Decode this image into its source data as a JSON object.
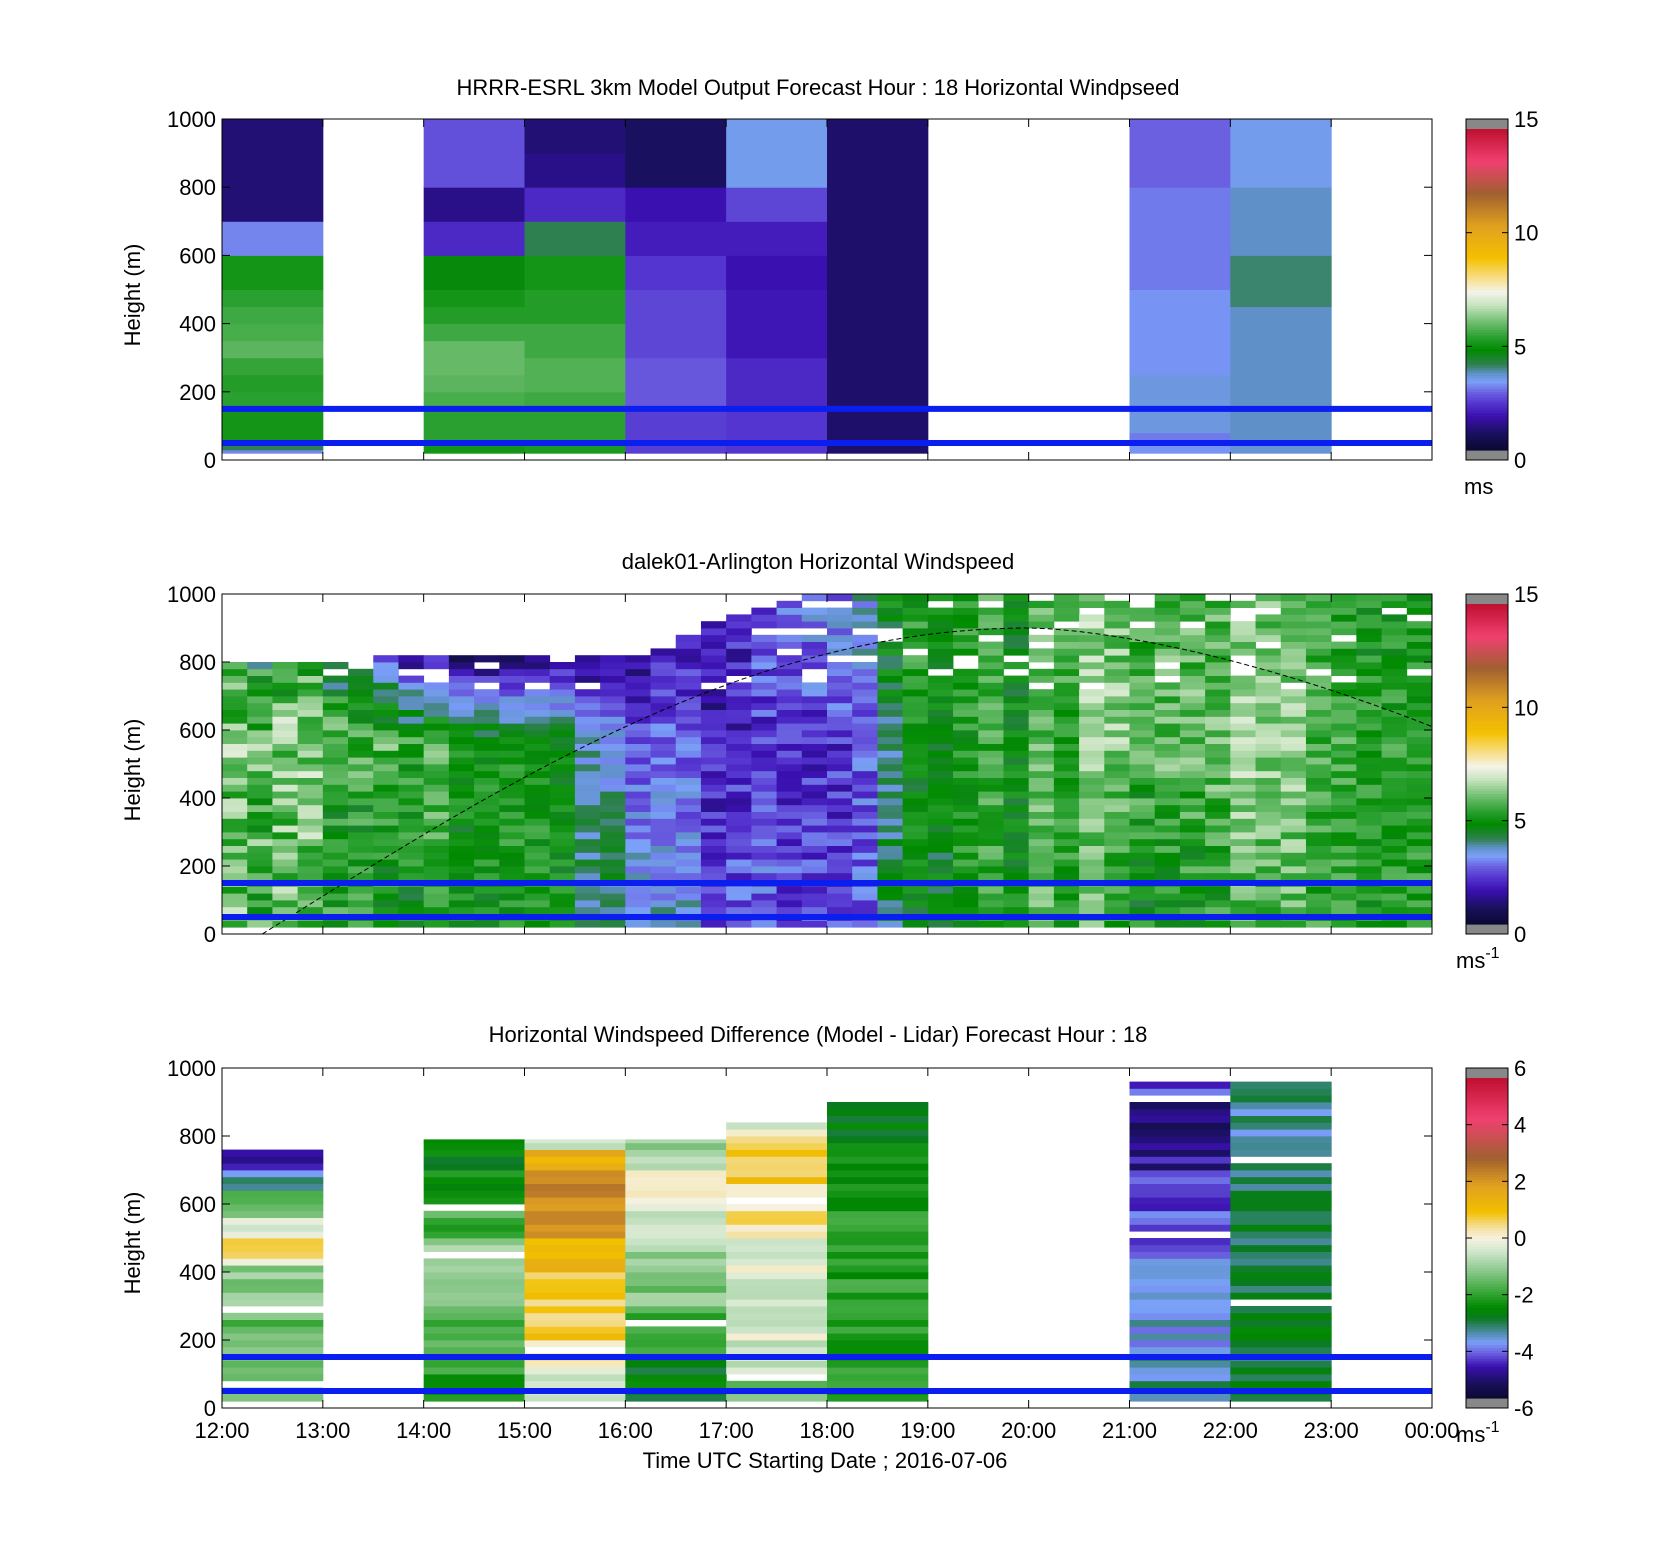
{
  "figure": {
    "xlabel": "Time UTC  Starting Date ; 2016-07-06",
    "x_tick_labels": [
      "12:00",
      "13:00",
      "14:00",
      "15:00",
      "16:00",
      "17:00",
      "18:00",
      "19:00",
      "20:00",
      "21:00",
      "22:00",
      "23:00",
      "00:00"
    ]
  },
  "chart_data": [
    {
      "type": "heatmap",
      "title": "HRRR-ESRL 3km Model Output   Forecast Hour : 18 Horizontal Windpseed",
      "xlabel": "",
      "ylabel": "Height (m)",
      "x_range_hours": [
        12,
        24
      ],
      "ylim": [
        0,
        1000
      ],
      "y_ticks": [
        0,
        200,
        400,
        600,
        800,
        1000
      ],
      "colorbar": {
        "min": 0,
        "max": 15,
        "ticks": [
          0,
          5,
          10,
          15
        ],
        "unit": "ms",
        "unit_sup": ""
      },
      "reference_lines_m": [
        50,
        150
      ],
      "columns": [
        {
          "hour": 12,
          "cells": [
            [
              20,
              30,
              3.0
            ],
            [
              30,
              50,
              4.0
            ],
            [
              50,
              150,
              5.0
            ],
            [
              150,
              200,
              5.3
            ],
            [
              200,
              250,
              5.2
            ],
            [
              250,
              300,
              5.4
            ],
            [
              300,
              350,
              5.8
            ],
            [
              350,
              400,
              5.6
            ],
            [
              400,
              450,
              5.5
            ],
            [
              450,
              500,
              5.3
            ],
            [
              500,
              600,
              5.0
            ],
            [
              600,
              700,
              3.0
            ],
            [
              700,
              1000,
              1.0
            ]
          ]
        },
        {
          "hour": 14,
          "cells": [
            [
              20,
              50,
              5.0
            ],
            [
              50,
              150,
              5.3
            ],
            [
              150,
              200,
              5.6
            ],
            [
              200,
              250,
              5.8
            ],
            [
              250,
              350,
              5.9
            ],
            [
              350,
              400,
              5.5
            ],
            [
              400,
              450,
              5.2
            ],
            [
              450,
              500,
              5.0
            ],
            [
              500,
              600,
              4.6
            ],
            [
              600,
              700,
              2.0
            ],
            [
              700,
              800,
              1.2
            ],
            [
              800,
              1000,
              2.5
            ]
          ]
        },
        {
          "hour": 15,
          "cells": [
            [
              20,
              50,
              5.1
            ],
            [
              50,
              150,
              5.3
            ],
            [
              150,
              200,
              5.5
            ],
            [
              200,
              300,
              5.7
            ],
            [
              300,
              400,
              5.5
            ],
            [
              400,
              500,
              5.2
            ],
            [
              500,
              600,
              5.0
            ],
            [
              600,
              700,
              4.0
            ],
            [
              700,
              800,
              2.0
            ],
            [
              800,
              900,
              1.2
            ],
            [
              900,
              1000,
              1.0
            ]
          ]
        },
        {
          "hour": 16,
          "cells": [
            [
              20,
              150,
              2.3
            ],
            [
              150,
              300,
              2.6
            ],
            [
              300,
              500,
              2.4
            ],
            [
              500,
              600,
              2.2
            ],
            [
              600,
              700,
              1.8
            ],
            [
              700,
              800,
              1.6
            ],
            [
              800,
              1000,
              0.8
            ]
          ]
        },
        {
          "hour": 17,
          "cells": [
            [
              20,
              150,
              2.2
            ],
            [
              150,
              300,
              2.0
            ],
            [
              300,
              500,
              1.7
            ],
            [
              500,
              600,
              1.6
            ],
            [
              600,
              700,
              1.8
            ],
            [
              700,
              800,
              2.4
            ],
            [
              800,
              1000,
              3.3
            ]
          ]
        },
        {
          "hour": 18,
          "cells": [
            [
              20,
              1000,
              0.9
            ]
          ]
        },
        {
          "hour": 21,
          "cells": [
            [
              20,
              50,
              3.1
            ],
            [
              50,
              80,
              2.9
            ],
            [
              80,
              250,
              3.4
            ],
            [
              250,
              500,
              3.1
            ],
            [
              500,
              800,
              2.9
            ],
            [
              800,
              1000,
              2.7
            ]
          ]
        },
        {
          "hour": 22,
          "cells": [
            [
              20,
              50,
              3.5
            ],
            [
              50,
              450,
              3.6
            ],
            [
              450,
              600,
              3.9
            ],
            [
              600,
              800,
              3.6
            ],
            [
              800,
              1000,
              3.3
            ]
          ]
        }
      ]
    },
    {
      "type": "heatmap",
      "title": "dalek01-Arlington  Horizontal Windspeed",
      "xlabel": "",
      "ylabel": "Height (m)",
      "x_range_hours": [
        12,
        24
      ],
      "ylim": [
        0,
        1000
      ],
      "y_ticks": [
        0,
        200,
        400,
        600,
        800,
        1000
      ],
      "colorbar": {
        "min": 0,
        "max": 15,
        "ticks": [
          0,
          5,
          10,
          15
        ],
        "unit": "ms",
        "unit_sup": "-1"
      },
      "reference_lines_m": [
        50,
        150
      ],
      "time_step_hours": 0.25,
      "time_end_hour": 23.875,
      "gate_m": 20,
      "gate_start_m": 20,
      "mixing_height_curve": {
        "start_hour": 12.4,
        "peak_hour": 20.0,
        "peak_m": 900,
        "end_hour": 24.0,
        "end_m": 610
      },
      "profile_keyframes": [
        {
          "hour": 12.0,
          "low": 5.4,
          "mid": 5.8,
          "upper": 4.6,
          "top_m": 790,
          "var": 2.5
        },
        {
          "hour": 13.0,
          "low": 5.5,
          "mid": 6.2,
          "upper": 5.0,
          "top_m": 780,
          "var": 2.2
        },
        {
          "hour": 14.0,
          "low": 5.4,
          "mid": 5.9,
          "upper": 1.8,
          "top_m": 820,
          "var": 1.5
        },
        {
          "hour": 15.0,
          "low": 5.0,
          "mid": 4.8,
          "upper": 1.0,
          "top_m": 820,
          "var": 1.2
        },
        {
          "hour": 16.0,
          "low": 3.6,
          "mid": 3.0,
          "upper": 1.5,
          "top_m": 800,
          "var": 1.2
        },
        {
          "hour": 17.0,
          "low": 2.6,
          "mid": 2.0,
          "upper": 2.0,
          "top_m": 930,
          "var": 1.6
        },
        {
          "hour": 18.0,
          "low": 2.3,
          "mid": 2.0,
          "upper": 3.0,
          "top_m": 990,
          "var": 1.6
        },
        {
          "hour": 19.0,
          "low": 4.6,
          "mid": 4.7,
          "upper": 5.0,
          "top_m": 990,
          "var": 1.4
        },
        {
          "hour": 20.0,
          "low": 5.3,
          "mid": 5.2,
          "upper": 5.2,
          "top_m": 1000,
          "var": 1.3
        },
        {
          "hour": 21.0,
          "low": 5.5,
          "mid": 6.2,
          "upper": 6.2,
          "top_m": 1000,
          "var": 1.8
        },
        {
          "hour": 22.0,
          "low": 5.6,
          "mid": 6.4,
          "upper": 6.0,
          "top_m": 1000,
          "var": 1.6
        },
        {
          "hour": 23.0,
          "low": 5.2,
          "mid": 5.4,
          "upper": 5.1,
          "top_m": 1000,
          "var": 1.4
        },
        {
          "hour": 24.0,
          "low": 5.0,
          "mid": 5.1,
          "upper": 4.9,
          "top_m": 1000,
          "var": 1.2
        }
      ]
    },
    {
      "type": "heatmap",
      "title": "Horizontal Windspeed Difference (Model - Lidar) Forecast Hour : 18",
      "xlabel": "Time UTC  Starting Date ; 2016-07-06",
      "ylabel": "Height (m)",
      "x_range_hours": [
        12,
        24
      ],
      "ylim": [
        0,
        1000
      ],
      "y_ticks": [
        0,
        200,
        400,
        600,
        800,
        1000
      ],
      "colorbar": {
        "min": -6,
        "max": 6,
        "ticks": [
          -6,
          -4,
          -2,
          0,
          2,
          4,
          6
        ],
        "unit": "ms",
        "unit_sup": "-1"
      },
      "reference_lines_m": [
        50,
        150
      ],
      "gate_m": 20,
      "columns": [
        {
          "hour": 12,
          "top_m": 760,
          "bands": [
            [
              20,
              300,
              -1.6
            ],
            [
              300,
              420,
              -1.2
            ],
            [
              420,
              450,
              0.2
            ],
            [
              450,
              500,
              0.5
            ],
            [
              500,
              560,
              -0.6
            ],
            [
              560,
              640,
              -1.8
            ],
            [
              640,
              700,
              -3.6
            ],
            [
              700,
              760,
              -5.0
            ]
          ]
        },
        {
          "hour": 14,
          "top_m": 790,
          "bands": [
            [
              20,
              150,
              -2.2
            ],
            [
              150,
              300,
              -1.9
            ],
            [
              300,
              500,
              -1.2
            ],
            [
              500,
              600,
              -1.9
            ],
            [
              600,
              700,
              -2.3
            ],
            [
              700,
              790,
              -2.6
            ]
          ]
        },
        {
          "hour": 15,
          "top_m": 790,
          "bands": [
            [
              20,
              100,
              -0.6
            ],
            [
              100,
              200,
              0.2
            ],
            [
              200,
              400,
              0.8
            ],
            [
              400,
              500,
              1.2
            ],
            [
              500,
              700,
              2.4
            ],
            [
              700,
              760,
              1.5
            ],
            [
              760,
              790,
              -0.4
            ]
          ]
        },
        {
          "hour": 16,
          "top_m": 790,
          "bands": [
            [
              20,
              150,
              -2.9
            ],
            [
              150,
              300,
              -1.9
            ],
            [
              300,
              450,
              -1.3
            ],
            [
              450,
              600,
              -0.6
            ],
            [
              600,
              700,
              0.4
            ],
            [
              700,
              790,
              -1.0
            ]
          ]
        },
        {
          "hour": 17,
          "top_m": 840,
          "bands": [
            [
              20,
              100,
              -1.4
            ],
            [
              100,
              200,
              -0.6
            ],
            [
              200,
              400,
              -0.3
            ],
            [
              400,
              500,
              -0.2
            ],
            [
              500,
              650,
              0.4
            ],
            [
              650,
              790,
              0.8
            ],
            [
              790,
              840,
              -0.3
            ]
          ]
        },
        {
          "hour": 18,
          "top_m": 900,
          "bands": [
            [
              20,
              150,
              -2.3
            ],
            [
              150,
              400,
              -2.2
            ],
            [
              400,
              600,
              -2.3
            ],
            [
              600,
              760,
              -2.5
            ],
            [
              760,
              900,
              -2.8
            ]
          ]
        },
        {
          "hour": 21,
          "top_m": 960,
          "bands": [
            [
              20,
              150,
              -3.5
            ],
            [
              150,
              300,
              -3.8
            ],
            [
              300,
              450,
              -4.1
            ],
            [
              450,
              600,
              -4.4
            ],
            [
              600,
              700,
              -4.6
            ],
            [
              700,
              800,
              -5.0
            ],
            [
              800,
              900,
              -5.3
            ],
            [
              900,
              960,
              -4.5
            ]
          ]
        },
        {
          "hour": 22,
          "top_m": 960,
          "bands": [
            [
              20,
              200,
              -3.1
            ],
            [
              200,
              400,
              -3.0
            ],
            [
              400,
              600,
              -3.1
            ],
            [
              600,
              800,
              -3.3
            ],
            [
              800,
              960,
              -3.5
            ]
          ]
        }
      ]
    }
  ]
}
